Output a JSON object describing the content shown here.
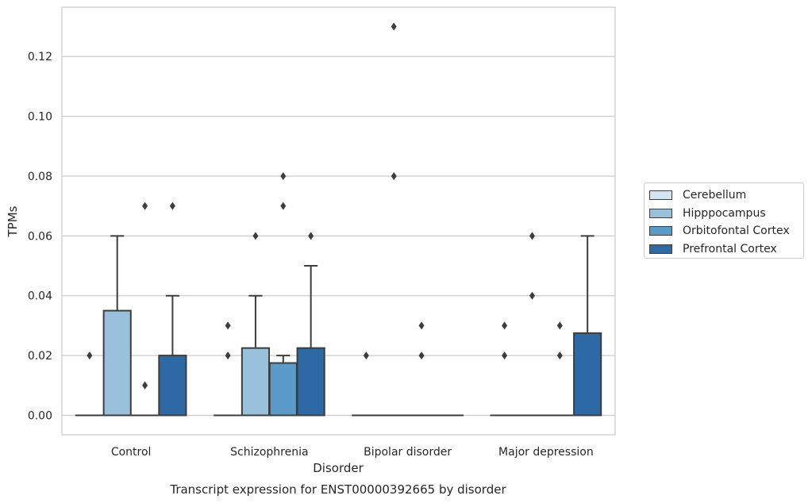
{
  "chart_data": {
    "type": "box",
    "title": "Transcript expression for ENST00000392665 by disorder",
    "xlabel": "Disorder",
    "ylabel": "TPMs",
    "categories": [
      "Control",
      "Schizophrenia",
      "Bipolar disorder",
      "Major depression"
    ],
    "ylim": [
      -0.0065,
      0.1365
    ],
    "yticks": [
      0.0,
      0.02,
      0.04,
      0.06,
      0.08,
      0.1,
      0.12
    ],
    "ytick_labels": [
      "0.00",
      "0.02",
      "0.04",
      "0.06",
      "0.08",
      "0.10",
      "0.12"
    ],
    "grid": "horizontal",
    "legend_position": "right",
    "series": [
      {
        "name": "Cerebellum",
        "color": "#d3e4f3",
        "boxes": [
          {
            "q1": 0,
            "median": 0,
            "q3": 0,
            "whisker_low": 0,
            "whisker_high": 0,
            "outliers": [
              0.02
            ]
          },
          {
            "q1": 0,
            "median": 0,
            "q3": 0,
            "whisker_low": 0,
            "whisker_high": 0,
            "outliers": [
              0.02,
              0.03
            ]
          },
          {
            "q1": 0,
            "median": 0,
            "q3": 0,
            "whisker_low": 0,
            "whisker_high": 0,
            "outliers": [
              0.02
            ]
          },
          {
            "q1": 0,
            "median": 0,
            "q3": 0,
            "whisker_low": 0,
            "whisker_high": 0,
            "outliers": [
              0.02,
              0.03
            ]
          }
        ]
      },
      {
        "name": "Hipppocampus",
        "color": "#9ac1dc",
        "boxes": [
          {
            "q1": 0,
            "median": 0,
            "q3": 0.035,
            "whisker_low": 0,
            "whisker_high": 0.06,
            "outliers": []
          },
          {
            "q1": 0,
            "median": 0,
            "q3": 0.0225,
            "whisker_low": 0,
            "whisker_high": 0.04,
            "outliers": [
              0.06
            ]
          },
          {
            "q1": 0,
            "median": 0,
            "q3": 0,
            "whisker_low": 0,
            "whisker_high": 0,
            "outliers": [
              0.08,
              0.13
            ]
          },
          {
            "q1": 0,
            "median": 0,
            "q3": 0,
            "whisker_low": 0,
            "whisker_high": 0,
            "outliers": [
              0.04,
              0.06
            ]
          }
        ]
      },
      {
        "name": "Orbitofontal Cortex",
        "color": "#5a9bc9",
        "boxes": [
          {
            "q1": 0,
            "median": 0,
            "q3": 0,
            "whisker_low": 0,
            "whisker_high": 0,
            "outliers": [
              0.01,
              0.07
            ]
          },
          {
            "q1": 0,
            "median": 0,
            "q3": 0.0175,
            "whisker_low": 0,
            "whisker_high": 0.02,
            "outliers": [
              0.07,
              0.08
            ]
          },
          {
            "q1": 0,
            "median": 0,
            "q3": 0,
            "whisker_low": 0,
            "whisker_high": 0,
            "outliers": [
              0.02,
              0.03
            ]
          },
          {
            "q1": 0,
            "median": 0,
            "q3": 0,
            "whisker_low": 0,
            "whisker_high": 0,
            "outliers": [
              0.02,
              0.03
            ]
          }
        ]
      },
      {
        "name": "Prefrontal Cortex",
        "color": "#2d6aa5",
        "boxes": [
          {
            "q1": 0,
            "median": 0,
            "q3": 0.02,
            "whisker_low": 0,
            "whisker_high": 0.04,
            "outliers": [
              0.07
            ]
          },
          {
            "q1": 0,
            "median": 0,
            "q3": 0.0225,
            "whisker_low": 0,
            "whisker_high": 0.05,
            "outliers": [
              0.06
            ]
          },
          {
            "q1": 0,
            "median": 0,
            "q3": 0,
            "whisker_low": 0,
            "whisker_high": 0,
            "outliers": []
          },
          {
            "q1": 0,
            "median": 0,
            "q3": 0.0275,
            "whisker_low": 0,
            "whisker_high": 0.06,
            "outliers": []
          }
        ]
      }
    ]
  }
}
